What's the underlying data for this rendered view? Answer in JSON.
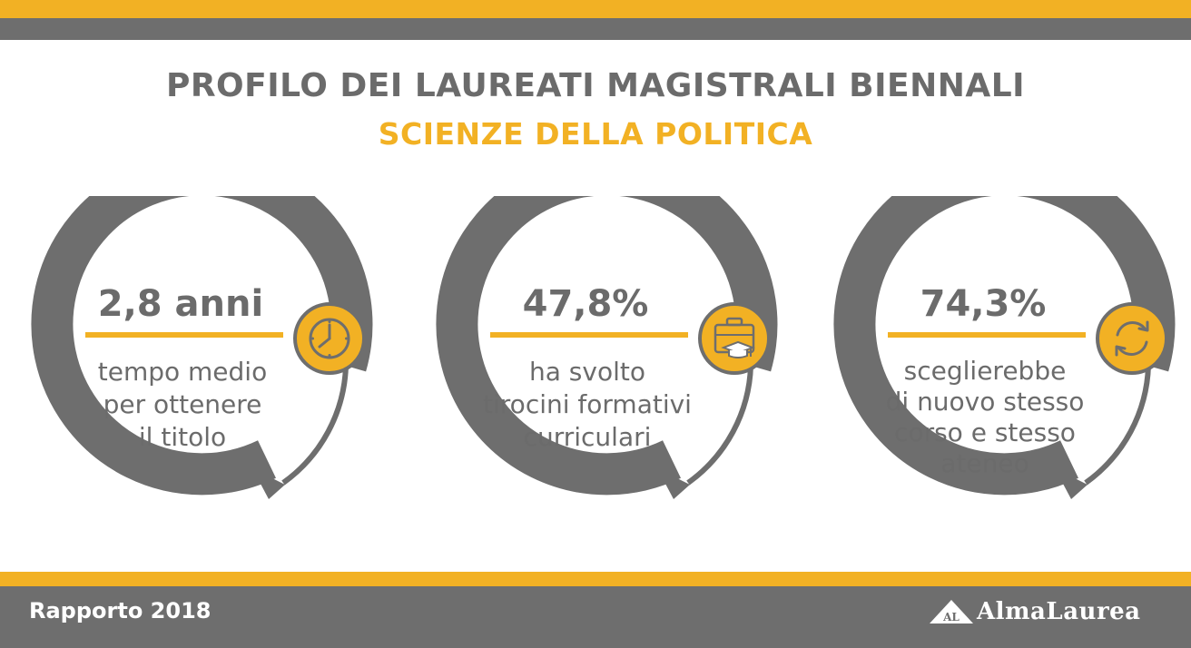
{
  "header": {
    "title": "PROFILO DEI LAUREATI MAGISTRALI BIENNALI",
    "subtitle": "SCIENZE DELLA POLITICA"
  },
  "cards": [
    {
      "value": "2,8 anni",
      "description": "tempo medio\nper ottenere\nil titolo",
      "icon": "clock-icon"
    },
    {
      "value": "47,8%",
      "description": "ha svolto\ntirocini formativi\ncurriculari",
      "icon": "briefcase-graduation-icon"
    },
    {
      "value": "74,3%",
      "description": "sceglierebbe\ndi nuovo stesso\ncorso e stesso\nateneo",
      "icon": "refresh-icon"
    }
  ],
  "footer": {
    "report": "Rapporto 2018",
    "logo_mark": "AL",
    "logo_text": "AlmaLaurea"
  },
  "colors": {
    "accent": "#f2b124",
    "grey": "#6e6e6e",
    "text": "#6b6b6b"
  }
}
